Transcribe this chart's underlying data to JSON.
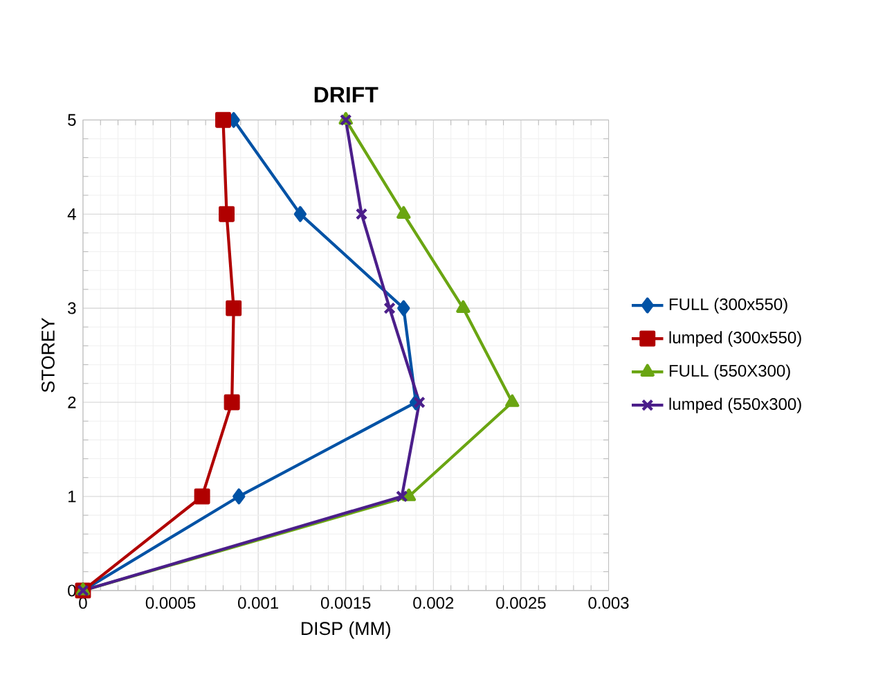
{
  "chart_data": {
    "type": "line",
    "title": "DRIFT",
    "xlabel": "DISP (MM)",
    "ylabel": "STOREY",
    "xlim": [
      0,
      0.003
    ],
    "xticks": [
      0,
      0.0005,
      0.001,
      0.0015,
      0.002,
      0.0025,
      0.003
    ],
    "ylim": [
      0,
      5
    ],
    "yticks": [
      0,
      1,
      2,
      3,
      4,
      5
    ],
    "grid": true,
    "legend": "right",
    "series": [
      {
        "name": "FULL (300x550)",
        "color": "#0052a5",
        "marker": "diamond",
        "x": [
          0,
          0.00089,
          0.0019,
          0.00183,
          0.00124,
          0.00086
        ],
        "values": [
          0,
          1,
          2,
          3,
          4,
          5
        ]
      },
      {
        "name": "lumped (300x550)",
        "color": "#b00000",
        "marker": "square",
        "x": [
          0,
          0.00068,
          0.00085,
          0.00086,
          0.00082,
          0.0008
        ],
        "values": [
          0,
          1,
          2,
          3,
          4,
          5
        ]
      },
      {
        "name": "FULL (550X300)",
        "color": "#6aa512",
        "marker": "triangle",
        "x": [
          0,
          0.00186,
          0.00245,
          0.00217,
          0.00183,
          0.0015
        ],
        "values": [
          0,
          1,
          2,
          3,
          4,
          5
        ]
      },
      {
        "name": "lumped (550x300)",
        "color": "#4b1e8a",
        "marker": "cross",
        "x": [
          0,
          0.00182,
          0.00192,
          0.00175,
          0.00159,
          0.0015
        ],
        "values": [
          0,
          1,
          2,
          3,
          4,
          5
        ]
      }
    ]
  }
}
